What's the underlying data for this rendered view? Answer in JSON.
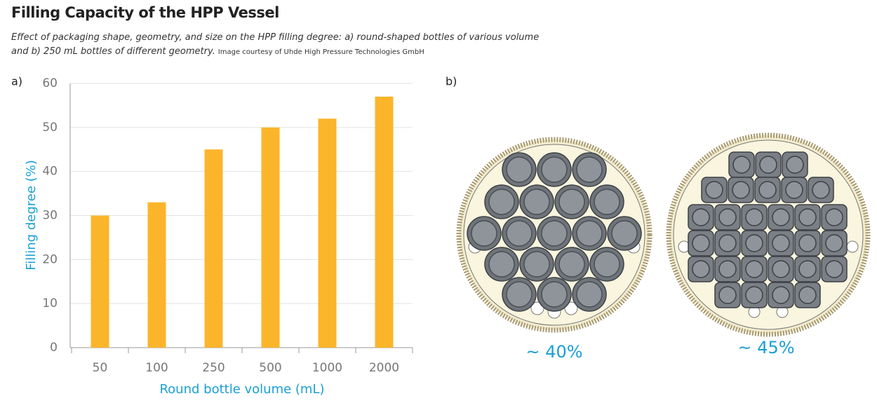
{
  "header": {
    "title": "Filling Capacity of the HPP Vessel",
    "subtitle": "Effect of packaging shape, geometry, and size on the HPP filling degree: a) round-shaped bottles of various volume and b) 250 mL bottles of different geometry.",
    "credit": "Image courtesy of Uhde High Pressure Technologies GmbH"
  },
  "chart_data": {
    "type": "bar",
    "panel_label": "a)",
    "x_label": "Round bottle volume (mL)",
    "y_label": "Filling degree (%)",
    "categories": [
      "50",
      "100",
      "250",
      "500",
      "1000",
      "2000"
    ],
    "values": [
      30,
      33,
      45,
      50,
      52,
      57
    ],
    "color": "#fbb52b",
    "ylim": [
      0,
      60
    ],
    "yticks": [
      0,
      10,
      20,
      30,
      40,
      50,
      60
    ],
    "grid": true
  },
  "panel_b": {
    "label": "b)",
    "annotations": [
      "~ 40%",
      "~ 45%"
    ]
  }
}
